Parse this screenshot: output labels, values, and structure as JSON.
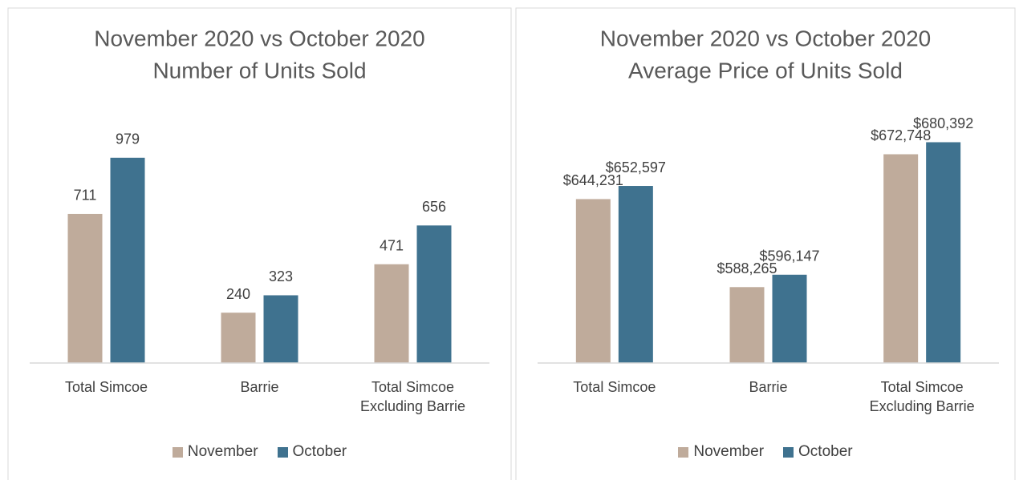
{
  "chart_data": [
    {
      "type": "bar",
      "title": "November 2020 vs October 2020",
      "subtitle": "Number of Units Sold",
      "categories": [
        "Total Simcoe",
        "Barrie",
        "Total Simcoe Excluding Barrie"
      ],
      "series": [
        {
          "name": "November",
          "color": "#bfab9b",
          "values": [
            711,
            240,
            471
          ]
        },
        {
          "name": "October",
          "color": "#3f728f",
          "values": [
            979,
            323,
            656
          ]
        }
      ],
      "ylim": [
        0,
        1200
      ],
      "legend": "bottom"
    },
    {
      "type": "bar",
      "title": "November 2020 vs October 2020",
      "subtitle": "Average Price of Units Sold",
      "categories": [
        "Total Simcoe",
        "Barrie",
        "Total Simcoe Excluding Barrie"
      ],
      "series": [
        {
          "name": "November",
          "color": "#bfab9b",
          "values": [
            644231,
            588265,
            672748
          ],
          "value_labels": [
            "$644,231",
            "$588,265",
            "$672,748"
          ]
        },
        {
          "name": "October",
          "color": "#3f728f",
          "values": [
            652597,
            596147,
            680392
          ],
          "value_labels": [
            "$652,597",
            "$596,147",
            "$680,392"
          ]
        }
      ],
      "ylim": [
        540000,
        700000
      ],
      "legend": "bottom"
    }
  ]
}
